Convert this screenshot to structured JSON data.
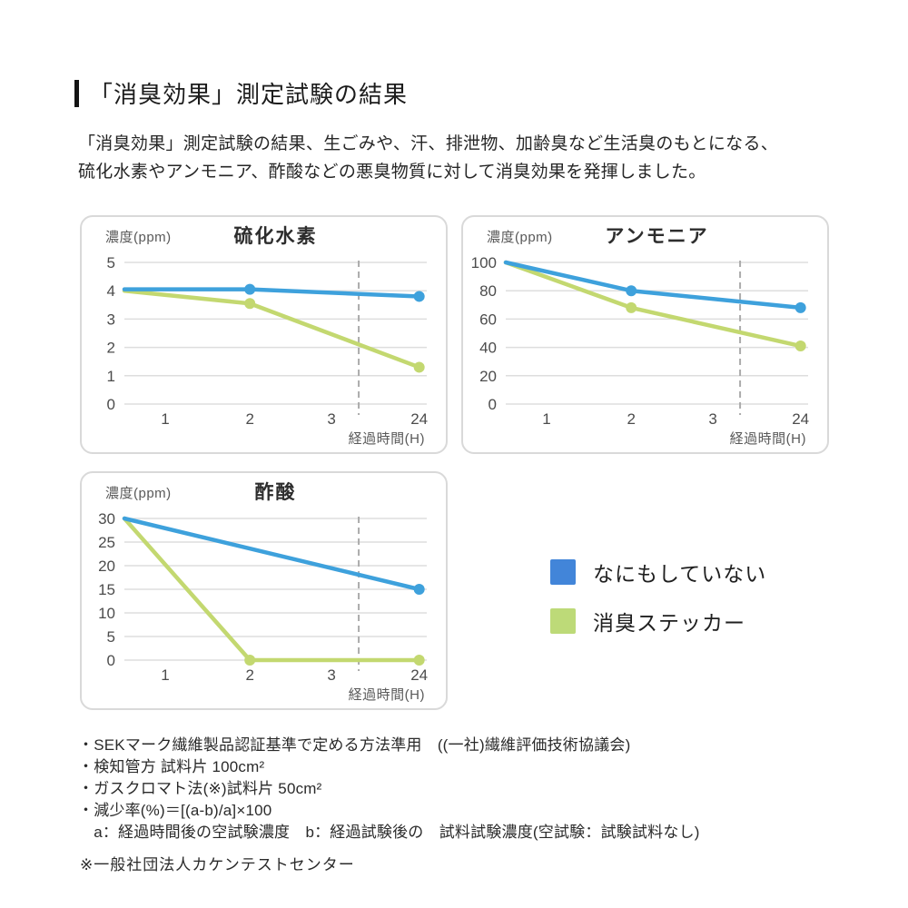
{
  "header": {
    "title": "「消臭効果」測定試験の結果",
    "description_lines": [
      "「消臭効果」測定試験の結果、生ごみや、汗、排泄物、加齢臭など生活臭のもとになる、",
      "硫化水素やアンモニア、酢酸などの悪臭物質に対して消臭効果を発揮しました。"
    ]
  },
  "legend": {
    "items": [
      {
        "label": "なにもしていない",
        "color": "#4285d9"
      },
      {
        "label": "消臭ステッカー",
        "color": "#bdda78"
      }
    ]
  },
  "chart_data": [
    {
      "type": "line",
      "title": "硫化水素",
      "ylabel": "濃度(ppm)",
      "xlabel": "経過時間(H)",
      "ylim": [
        0,
        5
      ],
      "yticks": [
        0,
        1,
        2,
        3,
        4,
        5
      ],
      "x_axis": {
        "tick_labels": [
          "1",
          "2",
          "3",
          "24"
        ],
        "tick_pos": [
          0.135,
          0.415,
          0.685,
          0.975
        ],
        "axis_break_pos": 0.775
      },
      "grid": true,
      "series": [
        {
          "name": "なにもしていない",
          "color": "#3ea1dc",
          "points": [
            {
              "x": 0,
              "y": 4.05,
              "pos": 0,
              "dot": false
            },
            {
              "x": 2,
              "y": 4.05,
              "pos": 0.415,
              "dot": true
            },
            {
              "x": 24,
              "y": 3.8,
              "pos": 0.975,
              "dot": true
            }
          ]
        },
        {
          "name": "消臭ステッカー",
          "color": "#c3d870",
          "points": [
            {
              "x": 0,
              "y": 4.0,
              "pos": 0,
              "dot": false
            },
            {
              "x": 2,
              "y": 3.55,
              "pos": 0.415,
              "dot": true
            },
            {
              "x": 24,
              "y": 1.3,
              "pos": 0.975,
              "dot": true
            }
          ]
        }
      ]
    },
    {
      "type": "line",
      "title": "アンモニア",
      "ylabel": "濃度(ppm)",
      "xlabel": "経過時間(H)",
      "ylim": [
        0,
        100
      ],
      "yticks": [
        0,
        20,
        40,
        60,
        80,
        100
      ],
      "x_axis": {
        "tick_labels": [
          "1",
          "2",
          "3",
          "24"
        ],
        "tick_pos": [
          0.135,
          0.415,
          0.685,
          0.975
        ],
        "axis_break_pos": 0.775
      },
      "grid": true,
      "series": [
        {
          "name": "なにもしていない",
          "color": "#3ea1dc",
          "points": [
            {
              "x": 0,
              "y": 100,
              "pos": 0,
              "dot": false
            },
            {
              "x": 2,
              "y": 80,
              "pos": 0.415,
              "dot": true
            },
            {
              "x": 24,
              "y": 68,
              "pos": 0.975,
              "dot": true
            }
          ]
        },
        {
          "name": "消臭ステッカー",
          "color": "#c3d870",
          "points": [
            {
              "x": 0,
              "y": 100,
              "pos": 0,
              "dot": false
            },
            {
              "x": 2,
              "y": 68,
              "pos": 0.415,
              "dot": true
            },
            {
              "x": 24,
              "y": 41,
              "pos": 0.975,
              "dot": true
            }
          ]
        }
      ]
    },
    {
      "type": "line",
      "title": "酢酸",
      "ylabel": "濃度(ppm)",
      "xlabel": "経過時間(H)",
      "ylim": [
        0,
        30
      ],
      "yticks": [
        0,
        5,
        10,
        15,
        20,
        25,
        30
      ],
      "x_axis": {
        "tick_labels": [
          "1",
          "2",
          "3",
          "24"
        ],
        "tick_pos": [
          0.135,
          0.415,
          0.685,
          0.975
        ],
        "axis_break_pos": 0.775
      },
      "grid": true,
      "series": [
        {
          "name": "なにもしていない",
          "color": "#3ea1dc",
          "points": [
            {
              "x": 0,
              "y": 30,
              "pos": 0,
              "dot": false
            },
            {
              "x": 24,
              "y": 15,
              "pos": 0.975,
              "dot": true
            }
          ]
        },
        {
          "name": "消臭ステッカー",
          "color": "#c3d870",
          "points": [
            {
              "x": 0,
              "y": 30,
              "pos": 0,
              "dot": false
            },
            {
              "x": 2,
              "y": 0,
              "pos": 0.415,
              "dot": true
            },
            {
              "x": 24,
              "y": 0,
              "pos": 0.975,
              "dot": true
            }
          ]
        }
      ]
    }
  ],
  "footnotes": {
    "bullets": [
      "・SEKマーク繊維製品認証基準で定める方法準用　((一社)繊維評価技術協議会)",
      "・検知管方 試料片 100cm²",
      "・ガスクロマト法(※)試料片 50cm²",
      "・減少率(%)＝[(a-b)/a]×100",
      "　a：経過時間後の空試験濃度　b：経過試験後の　試料試験濃度(空試験：試験試料なし)"
    ],
    "source": "※一般社団法人カケンテストセンター"
  },
  "style_colors": {
    "gridline": "#dedede",
    "axis_break_dash": "#ababab",
    "tick_text": "#4c4c4c"
  }
}
